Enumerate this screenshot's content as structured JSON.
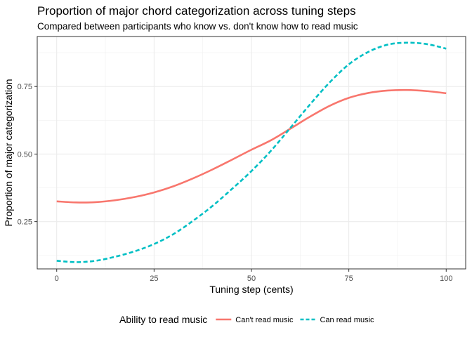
{
  "chart_data": {
    "type": "line",
    "title": "Proportion of major chord categorization across tuning steps",
    "subtitle": "Compared between participants who know vs. don't know how to read music",
    "xlabel": "Tuning step (cents)",
    "ylabel": "Proportion of major categorization",
    "xlim": [
      -5,
      105
    ],
    "ylim": [
      0.075,
      0.935
    ],
    "x_ticks": [
      0,
      25,
      50,
      75,
      100
    ],
    "x_tick_labels": [
      "0",
      "25",
      "50",
      "75",
      "100"
    ],
    "y_ticks": [
      0.25,
      0.5,
      0.75
    ],
    "y_tick_labels": [
      "0.25",
      "0.50",
      "0.75"
    ],
    "grid": true,
    "legend": {
      "title": "Ability to read music",
      "position": "bottom"
    },
    "series": [
      {
        "name": "Can't read music",
        "color": "#F8766D",
        "dash": "solid",
        "x": [
          0,
          5,
          10,
          15,
          20,
          25,
          30,
          35,
          40,
          45,
          50,
          55,
          60,
          65,
          70,
          75,
          80,
          85,
          90,
          95,
          100
        ],
        "values": [
          0.325,
          0.321,
          0.322,
          0.329,
          0.341,
          0.358,
          0.381,
          0.41,
          0.443,
          0.479,
          0.516,
          0.551,
          0.594,
          0.638,
          0.678,
          0.708,
          0.726,
          0.735,
          0.737,
          0.733,
          0.725
        ]
      },
      {
        "name": "Can read music",
        "color": "#00BFC4",
        "dash": "dashed",
        "x": [
          0,
          5,
          10,
          15,
          20,
          25,
          30,
          35,
          40,
          45,
          50,
          55,
          60,
          65,
          70,
          75,
          80,
          85,
          90,
          95,
          100
        ],
        "values": [
          0.105,
          0.1,
          0.105,
          0.12,
          0.14,
          0.167,
          0.204,
          0.253,
          0.308,
          0.371,
          0.437,
          0.512,
          0.597,
          0.683,
          0.764,
          0.832,
          0.878,
          0.905,
          0.912,
          0.907,
          0.89
        ]
      }
    ]
  }
}
